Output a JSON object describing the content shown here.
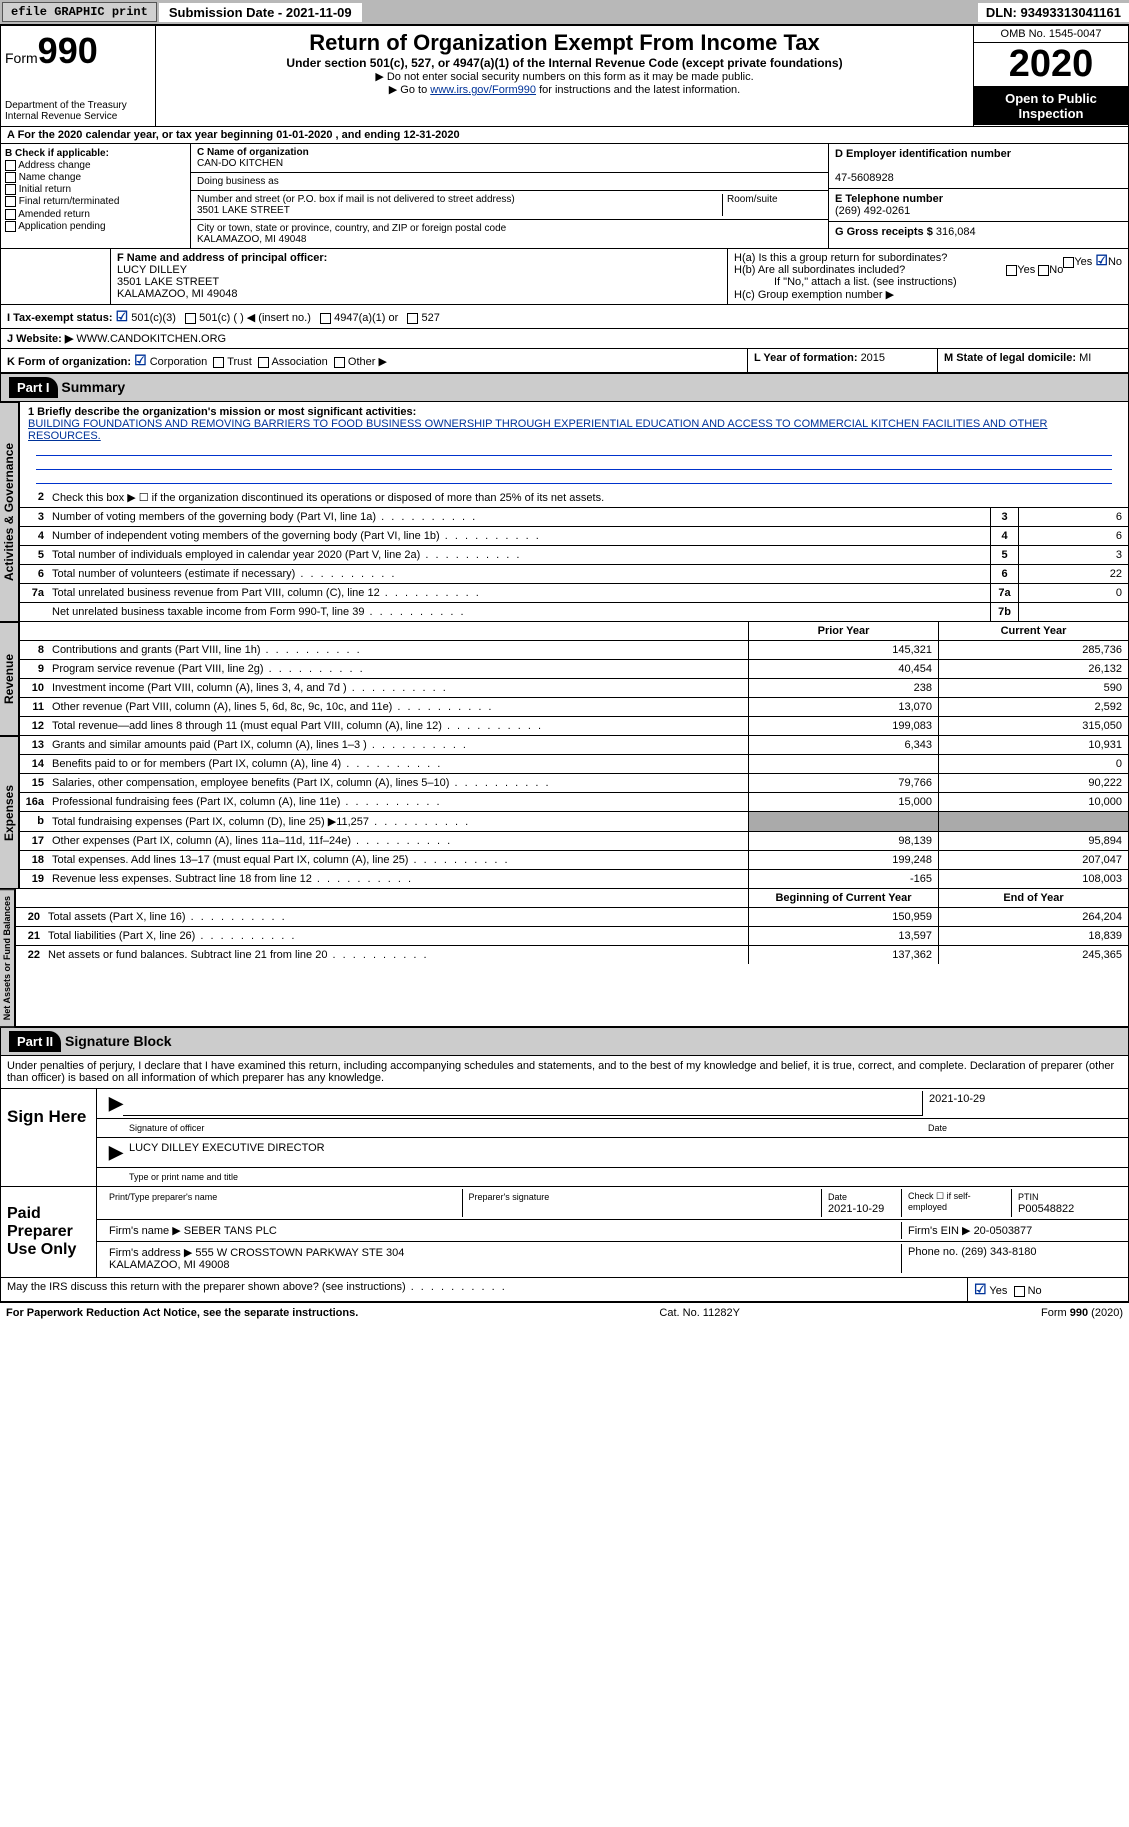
{
  "topbar": {
    "efile": "efile GRAPHIC print",
    "submission_label": "Submission Date - 2021-11-09",
    "dln": "DLN: 93493313041161"
  },
  "header": {
    "form_label": "Form",
    "form_num": "990",
    "dept": "Department of the Treasury\nInternal Revenue Service",
    "title": "Return of Organization Exempt From Income Tax",
    "subtitle": "Under section 501(c), 527, or 4947(a)(1) of the Internal Revenue Code (except private foundations)",
    "note1": "▶ Do not enter social security numbers on this form as it may be made public.",
    "note2_pre": "▶ Go to ",
    "note2_link": "www.irs.gov/Form990",
    "note2_post": " for instructions and the latest information.",
    "omb": "OMB No. 1545-0047",
    "year": "2020",
    "otp": "Open to Public Inspection"
  },
  "period": "A For the 2020 calendar year, or tax year beginning 01-01-2020   , and ending 12-31-2020",
  "boxB": {
    "label": "B Check if applicable:",
    "items": [
      "Address change",
      "Name change",
      "Initial return",
      "Final return/terminated",
      "Amended return",
      "Application pending"
    ]
  },
  "boxC": {
    "name_lbl": "C Name of organization",
    "name": "CAN-DO KITCHEN",
    "dba_lbl": "Doing business as",
    "addr_lbl": "Number and street (or P.O. box if mail is not delivered to street address)",
    "room_lbl": "Room/suite",
    "addr": "3501 LAKE STREET",
    "city_lbl": "City or town, state or province, country, and ZIP or foreign postal code",
    "city": "KALAMAZOO, MI  49048"
  },
  "boxD": {
    "lbl": "D Employer identification number",
    "val": "47-5608928"
  },
  "boxE": {
    "lbl": "E Telephone number",
    "val": "(269) 492-0261"
  },
  "boxG": {
    "lbl": "G Gross receipts $ ",
    "val": "316,084"
  },
  "boxF": {
    "lbl": "F  Name and address of principal officer:",
    "name": "LUCY DILLEY",
    "addr1": "3501 LAKE STREET",
    "addr2": "KALAMAZOO, MI  49048"
  },
  "boxH": {
    "a": "H(a)  Is this a group return for subordinates?",
    "b": "H(b)  Are all subordinates included?",
    "b_note": "If \"No,\" attach a list. (see instructions)",
    "c": "H(c)  Group exemption number ▶",
    "yes": "Yes",
    "no": "No"
  },
  "boxI": {
    "lbl": "I   Tax-exempt status:",
    "opts": [
      "501(c)(3)",
      "501(c) (  ) ◀ (insert no.)",
      "4947(a)(1) or",
      "527"
    ]
  },
  "boxJ": {
    "lbl": "J   Website: ▶",
    "val": "WWW.CANDOKITCHEN.ORG"
  },
  "boxK": {
    "lbl": "K Form of organization:",
    "opts": [
      "Corporation",
      "Trust",
      "Association",
      "Other ▶"
    ]
  },
  "boxL": {
    "lbl": "L Year of formation: ",
    "val": "2015"
  },
  "boxM": {
    "lbl": "M State of legal domicile: ",
    "val": "MI"
  },
  "part1": {
    "hdr": "Part I",
    "title": "Summary",
    "l1_lbl": "1  Briefly describe the organization's mission or most significant activities:",
    "l1_val": "BUILDING FOUNDATIONS AND REMOVING BARRIERS TO FOOD BUSINESS OWNERSHIP THROUGH EXPERIENTIAL EDUCATION AND ACCESS TO COMMERCIAL KITCHEN FACILITIES AND OTHER RESOURCES.",
    "l2": "Check this box ▶ ☐  if the organization discontinued its operations or disposed of more than 25% of its net assets.",
    "tabs": {
      "ag": "Activities & Governance",
      "rev": "Revenue",
      "exp": "Expenses",
      "nab": "Net Assets or Fund Balances"
    },
    "lines_ag": [
      {
        "n": "3",
        "d": "Number of voting members of the governing body (Part VI, line 1a)",
        "box": "3",
        "v": "6"
      },
      {
        "n": "4",
        "d": "Number of independent voting members of the governing body (Part VI, line 1b)",
        "box": "4",
        "v": "6"
      },
      {
        "n": "5",
        "d": "Total number of individuals employed in calendar year 2020 (Part V, line 2a)",
        "box": "5",
        "v": "3"
      },
      {
        "n": "6",
        "d": "Total number of volunteers (estimate if necessary)",
        "box": "6",
        "v": "22"
      },
      {
        "n": "7a",
        "d": "Total unrelated business revenue from Part VIII, column (C), line 12",
        "box": "7a",
        "v": "0"
      },
      {
        "n": "",
        "d": "Net unrelated business taxable income from Form 990-T, line 39",
        "box": "7b",
        "v": ""
      }
    ],
    "col_hdr": {
      "py": "Prior Year",
      "cy": "Current Year",
      "bcy": "Beginning of Current Year",
      "ey": "End of Year"
    },
    "lines_rev": [
      {
        "n": "8",
        "d": "Contributions and grants (Part VIII, line 1h)",
        "py": "145,321",
        "cy": "285,736"
      },
      {
        "n": "9",
        "d": "Program service revenue (Part VIII, line 2g)",
        "py": "40,454",
        "cy": "26,132"
      },
      {
        "n": "10",
        "d": "Investment income (Part VIII, column (A), lines 3, 4, and 7d )",
        "py": "238",
        "cy": "590"
      },
      {
        "n": "11",
        "d": "Other revenue (Part VIII, column (A), lines 5, 6d, 8c, 9c, 10c, and 11e)",
        "py": "13,070",
        "cy": "2,592"
      },
      {
        "n": "12",
        "d": "Total revenue—add lines 8 through 11 (must equal Part VIII, column (A), line 12)",
        "py": "199,083",
        "cy": "315,050"
      }
    ],
    "lines_exp": [
      {
        "n": "13",
        "d": "Grants and similar amounts paid (Part IX, column (A), lines 1–3 )",
        "py": "6,343",
        "cy": "10,931"
      },
      {
        "n": "14",
        "d": "Benefits paid to or for members (Part IX, column (A), line 4)",
        "py": "",
        "cy": "0"
      },
      {
        "n": "15",
        "d": "Salaries, other compensation, employee benefits (Part IX, column (A), lines 5–10)",
        "py": "79,766",
        "cy": "90,222"
      },
      {
        "n": "16a",
        "d": "Professional fundraising fees (Part IX, column (A), line 11e)",
        "py": "15,000",
        "cy": "10,000"
      },
      {
        "n": "b",
        "d": "Total fundraising expenses (Part IX, column (D), line 25) ▶11,257",
        "py": "shaded",
        "cy": "shaded"
      },
      {
        "n": "17",
        "d": "Other expenses (Part IX, column (A), lines 11a–11d, 11f–24e)",
        "py": "98,139",
        "cy": "95,894"
      },
      {
        "n": "18",
        "d": "Total expenses. Add lines 13–17 (must equal Part IX, column (A), line 25)",
        "py": "199,248",
        "cy": "207,047"
      },
      {
        "n": "19",
        "d": "Revenue less expenses. Subtract line 18 from line 12",
        "py": "-165",
        "cy": "108,003"
      }
    ],
    "lines_nab": [
      {
        "n": "20",
        "d": "Total assets (Part X, line 16)",
        "py": "150,959",
        "cy": "264,204"
      },
      {
        "n": "21",
        "d": "Total liabilities (Part X, line 26)",
        "py": "13,597",
        "cy": "18,839"
      },
      {
        "n": "22",
        "d": "Net assets or fund balances. Subtract line 21 from line 20",
        "py": "137,362",
        "cy": "245,365"
      }
    ]
  },
  "part2": {
    "hdr": "Part II",
    "title": "Signature Block",
    "decl": "Under penalties of perjury, I declare that I have examined this return, including accompanying schedules and statements, and to the best of my knowledge and belief, it is true, correct, and complete. Declaration of preparer (other than officer) is based on all information of which preparer has any knowledge.",
    "sign_here": "Sign Here",
    "sig_officer": "Signature of officer",
    "sig_date": "2021-10-29",
    "date_lbl": "Date",
    "officer_name": "LUCY DILLEY EXECUTIVE DIRECTOR",
    "type_name": "Type or print name and title",
    "paid": "Paid Preparer Use Only",
    "prep_name_lbl": "Print/Type preparer's name",
    "prep_sig_lbl": "Preparer's signature",
    "prep_date_lbl": "Date",
    "prep_date": "2021-10-29",
    "self_emp": "Check ☐ if self-employed",
    "ptin_lbl": "PTIN",
    "ptin": "P00548822",
    "firm_name_lbl": "Firm's name    ▶",
    "firm_name": "SEBER TANS PLC",
    "firm_ein_lbl": "Firm's EIN ▶",
    "firm_ein": "20-0503877",
    "firm_addr_lbl": "Firm's address ▶",
    "firm_addr": "555 W CROSSTOWN PARKWAY STE 304\nKALAMAZOO, MI  49008",
    "phone_lbl": "Phone no. ",
    "phone": "(269) 343-8180",
    "may_irs": "May the IRS discuss this return with the preparer shown above? (see instructions)",
    "yes": "Yes",
    "no": "No"
  },
  "footer": {
    "pra": "For Paperwork Reduction Act Notice, see the separate instructions.",
    "cat": "Cat. No. 11282Y",
    "form": "Form 990 (2020)"
  },
  "colors": {
    "link": "#003399",
    "shade": "#cccccc",
    "black": "#000000"
  }
}
